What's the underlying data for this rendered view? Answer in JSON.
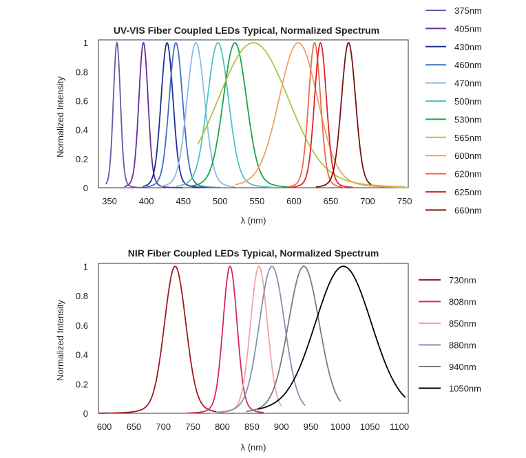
{
  "chart_data": [
    {
      "type": "line",
      "title": "UV-VIS Fiber Coupled LEDs Typical, Normalized Spectrum",
      "xlabel": "λ (nm)",
      "ylabel": "Normalized Intensity",
      "xlim": [
        335,
        755
      ],
      "ylim": [
        0,
        1.02
      ],
      "xticks": [
        "350",
        "400",
        "450",
        "500",
        "550",
        "600",
        "650",
        "700",
        "750"
      ],
      "yticks": [
        "0",
        "0.2",
        "0.4",
        "0.6",
        "0.8",
        "1"
      ],
      "grid": false,
      "legend_position": "right",
      "series": [
        {
          "name": "375nm",
          "color": "#6b56a4",
          "peak": 360,
          "fwhm": 10,
          "range": [
            345,
            400
          ]
        },
        {
          "name": "405nm",
          "color": "#6a2c9e",
          "peak": 396,
          "fwhm": 13,
          "range": [
            370,
            450
          ]
        },
        {
          "name": "430nm",
          "color": "#1f2e8a",
          "peak": 428,
          "fwhm": 17,
          "range": [
            395,
            480
          ]
        },
        {
          "name": "460nm",
          "color": "#3b6fc4",
          "peak": 440,
          "fwhm": 19,
          "range": [
            400,
            500
          ]
        },
        {
          "name": "470nm",
          "color": "#87bde6",
          "peak": 467,
          "fwhm": 25,
          "range": [
            420,
            520
          ]
        },
        {
          "name": "500nm",
          "color": "#4fc3c2",
          "peak": 497,
          "fwhm": 30,
          "range": [
            440,
            570
          ]
        },
        {
          "name": "530nm",
          "color": "#1aa34a",
          "peak": 520,
          "fwhm": 33,
          "range": [
            460,
            600
          ]
        },
        {
          "name": "565nm",
          "color": "#a7c93a",
          "peak": 545,
          "fwhm": 100,
          "range": [
            470,
            750
          ]
        },
        {
          "name": "600nm",
          "color": "#f0a060",
          "peak": 606,
          "fwhm": 55,
          "range": [
            520,
            755
          ]
        },
        {
          "name": "620nm",
          "color": "#ef6a48",
          "peak": 628,
          "fwhm": 17,
          "range": [
            590,
            665
          ]
        },
        {
          "name": "625nm",
          "color": "#e0232b",
          "peak": 636,
          "fwhm": 17,
          "range": [
            600,
            680
          ]
        },
        {
          "name": "660nm",
          "color": "#7a1010",
          "peak": 674,
          "fwhm": 20,
          "range": [
            630,
            705
          ]
        }
      ]
    },
    {
      "type": "line",
      "title": "NIR Fiber Coupled LEDs Typical, Normalized Spectrum",
      "xlabel": "λ (nm)",
      "ylabel": "Normalized Intensity",
      "xlim": [
        590,
        1115
      ],
      "ylim": [
        0,
        1.02
      ],
      "xticks": [
        "600",
        "650",
        "700",
        "750",
        "800",
        "850",
        "900",
        "950",
        "1000",
        "1050",
        "1100"
      ],
      "yticks": [
        "0",
        "0.2",
        "0.4",
        "0.6",
        "0.8",
        "1"
      ],
      "grid": false,
      "legend_position": "right",
      "series": [
        {
          "name": "730nm",
          "color": "#9b1b22",
          "peak": 720,
          "fwhm": 38,
          "range": [
            590,
            790
          ]
        },
        {
          "name": "808nm",
          "color": "#d5275e",
          "peak": 813,
          "fwhm": 25,
          "range": [
            740,
            870
          ]
        },
        {
          "name": "850nm",
          "color": "#f5a3a3",
          "peak": 862,
          "fwhm": 30,
          "range": [
            780,
            900
          ]
        },
        {
          "name": "880nm",
          "color": "#7f93b4",
          "peak": 884,
          "fwhm": 45,
          "range": [
            790,
            940
          ]
        },
        {
          "name": "940nm",
          "color": "#7a7a7a",
          "peak": 938,
          "fwhm": 55,
          "range": [
            840,
            1000
          ]
        },
        {
          "name": "1050nm",
          "color": "#000000",
          "peak": 1005,
          "fwhm": 100,
          "range": [
            860,
            1110
          ]
        }
      ]
    }
  ]
}
